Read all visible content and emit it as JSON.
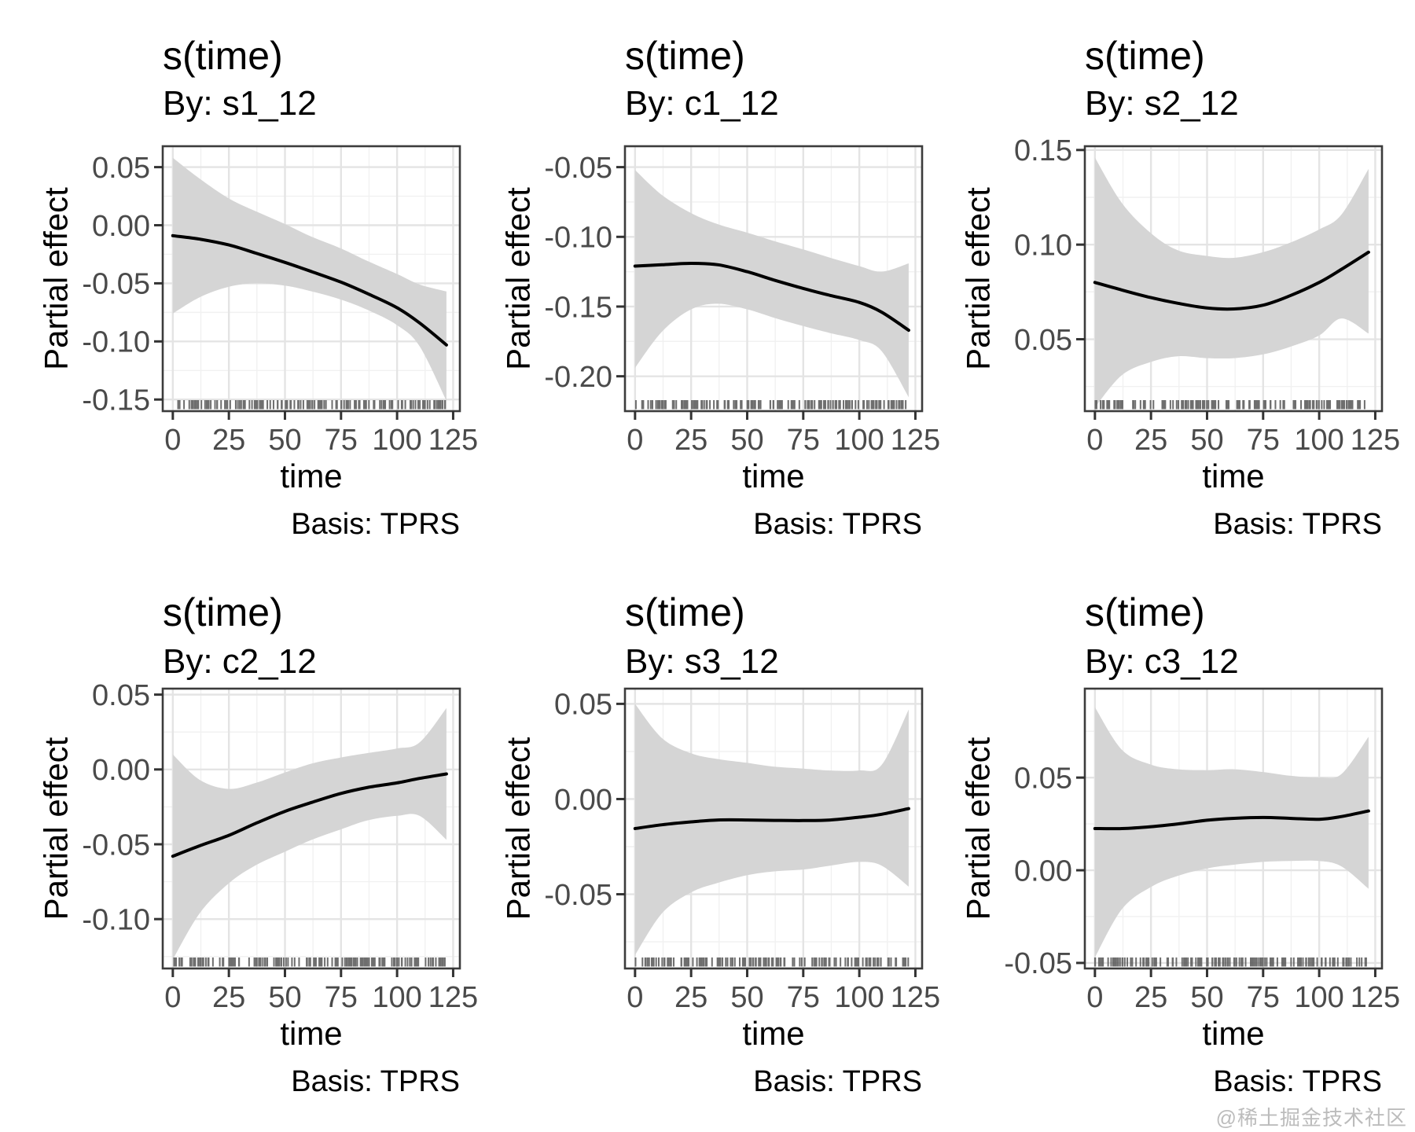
{
  "watermark": {
    "text": "@稀土掘金技术社区",
    "color": "#bcbcbc"
  },
  "style": {
    "background": "#ffffff",
    "grid_major": "#e4e4e4",
    "grid_minor": "#f1f1f1",
    "ribbon": "#d5d5d5",
    "line": "#000000",
    "panel_border": "#3c3c3c",
    "tick_mark": "#333333",
    "tick_text": "#4a4a4a",
    "title_text": "#000000",
    "rug": "#5f5f5f"
  },
  "chart_data": {
    "type": "line",
    "layout": {
      "rows": 2,
      "cols": 3,
      "grid": "on",
      "legend": "none"
    },
    "shared": {
      "title": "s(time)",
      "xlabel": "time",
      "ylabel": "Partial effect",
      "caption": "Basis: TPRS",
      "x_ticks": [
        0,
        25,
        50,
        75,
        100,
        125
      ],
      "xlim": [
        -4.5,
        128
      ],
      "x": [
        0,
        12,
        25,
        37,
        50,
        62,
        75,
        87,
        100,
        110,
        122
      ],
      "rug": {
        "min": 0,
        "max": 122,
        "count": 150
      }
    },
    "panels": [
      {
        "subtitle": "By: s1_12",
        "y_ticks": [
          0.05,
          0.0,
          -0.05,
          -0.1,
          -0.15
        ],
        "ylim": [
          -0.16,
          0.068
        ],
        "estimate": [
          -0.009,
          -0.012,
          -0.017,
          -0.024,
          -0.032,
          -0.04,
          -0.049,
          -0.059,
          -0.071,
          -0.084,
          -0.103
        ],
        "upper": [
          0.058,
          0.04,
          0.023,
          0.012,
          0.001,
          -0.01,
          -0.02,
          -0.031,
          -0.042,
          -0.051,
          -0.057
        ],
        "lower": [
          -0.076,
          -0.062,
          -0.053,
          -0.05,
          -0.052,
          -0.057,
          -0.064,
          -0.073,
          -0.086,
          -0.104,
          -0.151
        ]
      },
      {
        "subtitle": "By: c1_12",
        "y_ticks": [
          -0.05,
          -0.1,
          -0.15,
          -0.2
        ],
        "ylim": [
          -0.225,
          -0.035
        ],
        "estimate": [
          -0.121,
          -0.12,
          -0.119,
          -0.12,
          -0.125,
          -0.131,
          -0.137,
          -0.142,
          -0.147,
          -0.154,
          -0.167
        ],
        "upper": [
          -0.052,
          -0.07,
          -0.083,
          -0.091,
          -0.097,
          -0.103,
          -0.109,
          -0.115,
          -0.121,
          -0.125,
          -0.119
        ],
        "lower": [
          -0.194,
          -0.168,
          -0.152,
          -0.148,
          -0.152,
          -0.158,
          -0.164,
          -0.169,
          -0.174,
          -0.182,
          -0.215
        ]
      },
      {
        "subtitle": "By: s2_12",
        "y_ticks": [
          0.15,
          0.1,
          0.05
        ],
        "ylim": [
          0.012,
          0.152
        ],
        "estimate": [
          0.08,
          0.076,
          0.072,
          0.069,
          0.0665,
          0.066,
          0.068,
          0.073,
          0.08,
          0.087,
          0.096
        ],
        "upper": [
          0.146,
          0.122,
          0.106,
          0.097,
          0.094,
          0.093,
          0.096,
          0.101,
          0.108,
          0.116,
          0.14
        ],
        "lower": [
          0.014,
          0.031,
          0.038,
          0.041,
          0.04,
          0.04,
          0.042,
          0.046,
          0.052,
          0.061,
          0.053
        ]
      },
      {
        "subtitle": "By: c2_12",
        "y_ticks": [
          0.05,
          0.0,
          -0.05,
          -0.1
        ],
        "ylim": [
          -0.133,
          0.054
        ],
        "estimate": [
          -0.058,
          -0.051,
          -0.044,
          -0.036,
          -0.028,
          -0.022,
          -0.016,
          -0.012,
          -0.009,
          -0.006,
          -0.003
        ],
        "upper": [
          0.01,
          -0.007,
          -0.013,
          -0.009,
          -0.002,
          0.004,
          0.008,
          0.011,
          0.014,
          0.018,
          0.041
        ],
        "lower": [
          -0.127,
          -0.096,
          -0.076,
          -0.064,
          -0.055,
          -0.047,
          -0.04,
          -0.034,
          -0.031,
          -0.031,
          -0.047
        ]
      },
      {
        "subtitle": "By: s3_12",
        "y_ticks": [
          0.05,
          0.0,
          -0.05
        ],
        "ylim": [
          -0.089,
          0.058
        ],
        "estimate": [
          -0.0155,
          -0.0135,
          -0.012,
          -0.011,
          -0.011,
          -0.0112,
          -0.0113,
          -0.011,
          -0.0095,
          -0.008,
          -0.005
        ],
        "upper": [
          0.05,
          0.032,
          0.024,
          0.021,
          0.019,
          0.017,
          0.016,
          0.015,
          0.015,
          0.018,
          0.047
        ],
        "lower": [
          -0.082,
          -0.06,
          -0.049,
          -0.044,
          -0.04,
          -0.038,
          -0.037,
          -0.035,
          -0.033,
          -0.035,
          -0.046
        ]
      },
      {
        "subtitle": "By: c3_12",
        "y_ticks": [
          0.05,
          0.0,
          -0.05
        ],
        "ylim": [
          -0.053,
          0.098
        ],
        "estimate": [
          0.0225,
          0.0225,
          0.0235,
          0.025,
          0.027,
          0.028,
          0.0285,
          0.028,
          0.0275,
          0.029,
          0.032
        ],
        "upper": [
          0.088,
          0.065,
          0.057,
          0.0545,
          0.054,
          0.0545,
          0.053,
          0.051,
          0.05,
          0.052,
          0.072
        ],
        "lower": [
          -0.047,
          -0.021,
          -0.009,
          -0.003,
          0.001,
          0.003,
          0.0045,
          0.005,
          0.005,
          0.002,
          -0.01
        ]
      }
    ]
  }
}
